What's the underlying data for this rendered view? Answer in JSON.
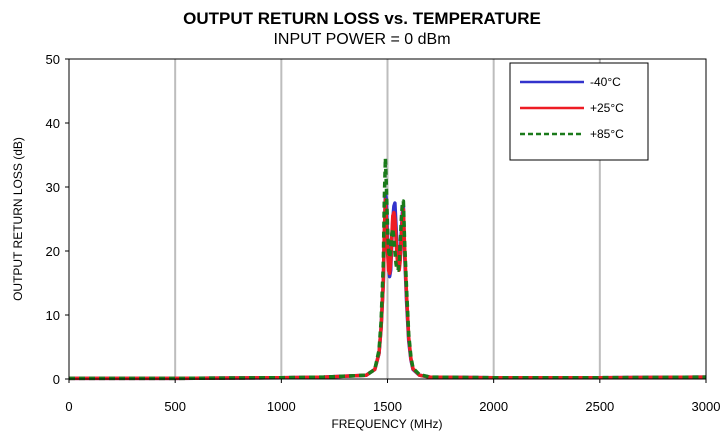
{
  "chart_data": {
    "type": "line",
    "title": "OUTPUT RETURN LOSS vs. TEMPERATURE",
    "subtitle": "INPUT POWER = 0 dBm",
    "xlabel": "FREQUENCY (MHz)",
    "ylabel": "OUTPUT RETURN LOSS (dB)",
    "xlim": [
      0,
      3000
    ],
    "ylim": [
      0,
      50
    ],
    "xticks": [
      0,
      500,
      1000,
      1500,
      2000,
      2500,
      3000
    ],
    "yticks": [
      0,
      10,
      20,
      30,
      40,
      50
    ],
    "grid": {
      "vertical": true,
      "horizontal": false
    },
    "legend_position": "top-right",
    "series": [
      {
        "name": "-40°C",
        "color": "#3333cc",
        "dash": "solid",
        "x": [
          0,
          500,
          1000,
          1200,
          1400,
          1440,
          1460,
          1470,
          1480,
          1485,
          1490,
          1495,
          1500,
          1505,
          1510,
          1515,
          1520,
          1525,
          1530,
          1535,
          1540,
          1545,
          1550,
          1555,
          1560,
          1565,
          1570,
          1575,
          1580,
          1590,
          1600,
          1610,
          1620,
          1650,
          1700,
          2000,
          2500,
          3000
        ],
        "y": [
          0.1,
          0.1,
          0.2,
          0.3,
          0.6,
          1.5,
          4.0,
          8.0,
          15.0,
          22.0,
          29.0,
          28.0,
          22.0,
          18.0,
          16.0,
          17.0,
          21.0,
          25.0,
          27.0,
          27.5,
          24.0,
          20.0,
          18.0,
          17.5,
          19.0,
          23.0,
          26.0,
          27.0,
          20.0,
          12.0,
          6.0,
          3.0,
          1.5,
          0.6,
          0.3,
          0.2,
          0.2,
          0.3
        ]
      },
      {
        "name": "+25°C",
        "color": "#ee1c24",
        "dash": "solid",
        "x": [
          0,
          500,
          1000,
          1200,
          1400,
          1440,
          1460,
          1470,
          1480,
          1485,
          1490,
          1495,
          1500,
          1505,
          1510,
          1515,
          1520,
          1525,
          1530,
          1535,
          1540,
          1545,
          1550,
          1555,
          1560,
          1565,
          1570,
          1575,
          1580,
          1590,
          1600,
          1610,
          1620,
          1650,
          1700,
          2000,
          2500,
          3000
        ],
        "y": [
          0.1,
          0.1,
          0.2,
          0.3,
          0.6,
          1.5,
          4.0,
          8.0,
          15.0,
          23.0,
          28.0,
          25.0,
          20.0,
          17.0,
          16.5,
          18.0,
          22.0,
          25.5,
          26.0,
          25.0,
          22.0,
          19.0,
          17.5,
          17.0,
          18.5,
          22.0,
          25.0,
          26.5,
          21.0,
          13.0,
          6.5,
          3.2,
          1.6,
          0.6,
          0.3,
          0.2,
          0.2,
          0.3
        ]
      },
      {
        "name": "+85°C",
        "color": "#1a7a1a",
        "dash": "dashed",
        "x": [
          0,
          500,
          1000,
          1200,
          1400,
          1440,
          1460,
          1470,
          1480,
          1485,
          1490,
          1495,
          1500,
          1505,
          1510,
          1515,
          1520,
          1525,
          1530,
          1535,
          1540,
          1545,
          1550,
          1555,
          1560,
          1565,
          1570,
          1575,
          1580,
          1590,
          1600,
          1610,
          1620,
          1650,
          1700,
          2000,
          2500,
          3000
        ],
        "y": [
          0.1,
          0.1,
          0.2,
          0.3,
          0.6,
          1.5,
          4.5,
          9.0,
          18.0,
          28.0,
          34.5,
          30.0,
          24.0,
          20.0,
          19.0,
          20.0,
          22.5,
          23.5,
          22.0,
          20.0,
          18.0,
          17.0,
          17.0,
          18.0,
          21.0,
          25.0,
          27.5,
          27.8,
          22.0,
          14.0,
          7.0,
          3.5,
          1.7,
          0.7,
          0.3,
          0.2,
          0.2,
          0.3
        ]
      }
    ]
  }
}
